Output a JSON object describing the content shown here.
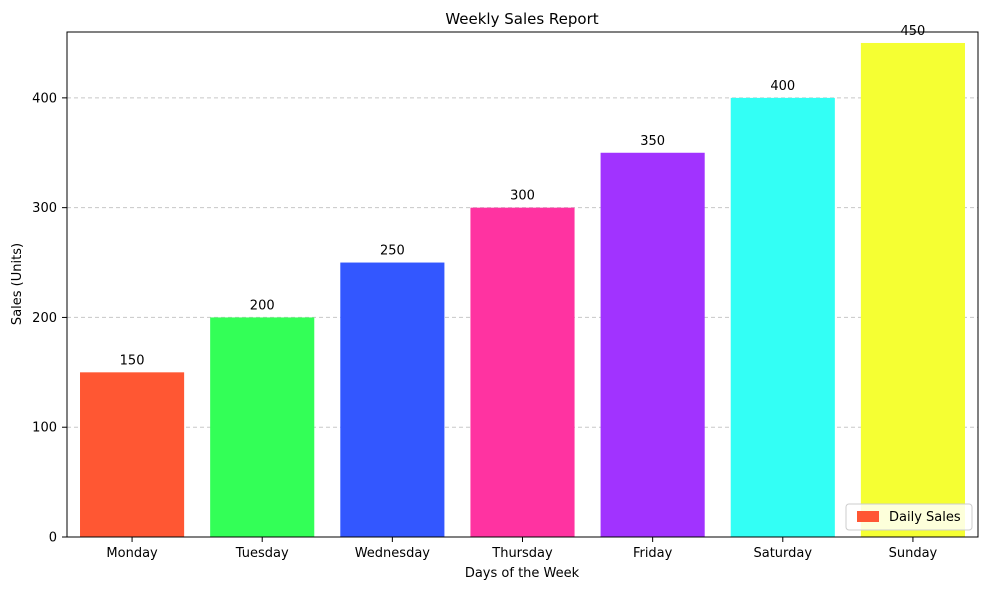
{
  "chart_data": {
    "type": "bar",
    "title": "Weekly Sales Report",
    "xlabel": "Days of the Week",
    "ylabel": "Sales (Units)",
    "categories": [
      "Monday",
      "Tuesday",
      "Wednesday",
      "Thursday",
      "Friday",
      "Saturday",
      "Sunday"
    ],
    "series": [
      {
        "name": "Daily Sales",
        "values": [
          150,
          200,
          250,
          300,
          350,
          400,
          450
        ]
      }
    ],
    "colors": [
      "#FF5733",
      "#33FF57",
      "#3357FF",
      "#FF33A1",
      "#A133FF",
      "#33FFF5",
      "#F5FF33"
    ],
    "data_labels": [
      "150",
      "200",
      "250",
      "300",
      "350",
      "400",
      "450"
    ],
    "ylim": [
      0,
      460
    ],
    "yticks": [
      0,
      100,
      200,
      300,
      400
    ],
    "grid": {
      "axis": "y",
      "style": "dashed",
      "color": "#c8c8c8"
    },
    "legend": {
      "position": "bottom-right",
      "label": "Daily Sales",
      "color": "#FF5733"
    }
  }
}
